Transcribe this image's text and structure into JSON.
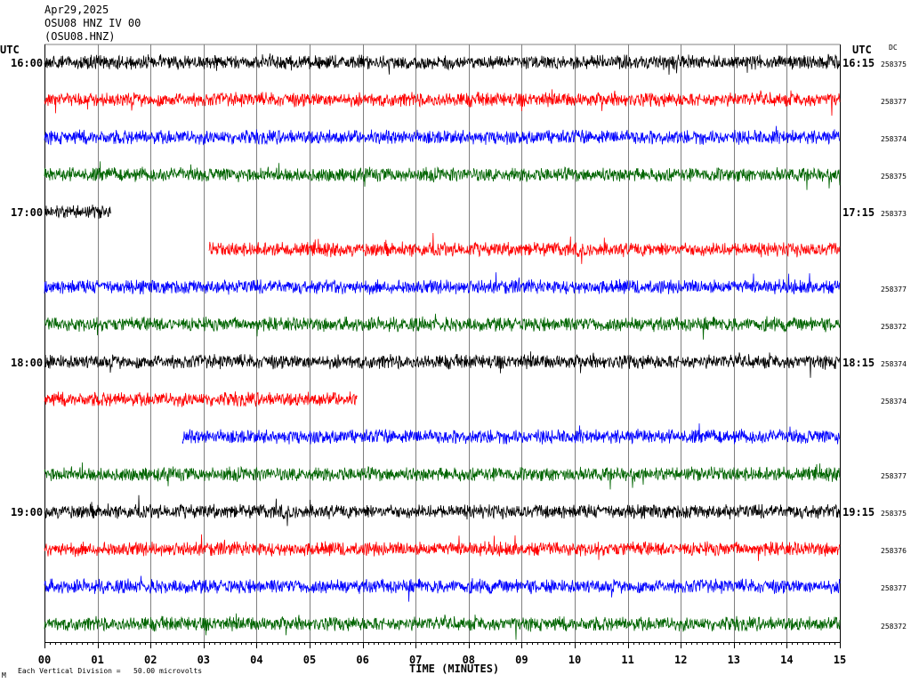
{
  "header": {
    "date": "Apr29,2025",
    "station": "OSU08 HNZ IV 00",
    "channel": "(OSU08.HNZ)"
  },
  "left_axis_label": "UTC",
  "right_axis_label": "UTC",
  "dc_label": "DC",
  "footer": {
    "scale_note": "Each Vertical Division =   50.00 microvolts",
    "mark": "M"
  },
  "colors": {
    "black": "#000000",
    "red": "#ff0000",
    "blue": "#0000ff",
    "green": "#006400",
    "grid": "#808080"
  },
  "chart_data": {
    "type": "line",
    "title": "",
    "xlabel": "TIME (MINUTES)",
    "ylabel": "",
    "xlim": [
      0,
      15
    ],
    "x_ticks": [
      "00",
      "01",
      "02",
      "03",
      "04",
      "05",
      "06",
      "07",
      "08",
      "09",
      "10",
      "11",
      "12",
      "13",
      "14",
      "15"
    ],
    "grid": true,
    "hour_labels": [
      {
        "row": 0,
        "left": "16:00",
        "right": "16:15"
      },
      {
        "row": 4,
        "left": "17:00",
        "right": "17:15"
      },
      {
        "row": 8,
        "left": "18:00",
        "right": "18:15"
      },
      {
        "row": 12,
        "left": "19:00",
        "right": "19:15"
      }
    ],
    "series": [
      {
        "row": 0,
        "color": "black",
        "start_min": 0.0,
        "end_min": 15.0,
        "dc": "258375"
      },
      {
        "row": 1,
        "color": "red",
        "start_min": 0.0,
        "end_min": 15.0,
        "dc": "258377"
      },
      {
        "row": 2,
        "color": "blue",
        "start_min": 0.0,
        "end_min": 15.0,
        "dc": "258374"
      },
      {
        "row": 3,
        "color": "green",
        "start_min": 0.0,
        "end_min": 15.0,
        "dc": "258375"
      },
      {
        "row": 4,
        "color": "black",
        "start_min": 0.0,
        "end_min": 1.25,
        "dc": "258373"
      },
      {
        "row": 5,
        "color": "red",
        "start_min": 3.1,
        "end_min": 15.0,
        "dc": ""
      },
      {
        "row": 6,
        "color": "blue",
        "start_min": 0.0,
        "end_min": 15.0,
        "dc": "258377"
      },
      {
        "row": 7,
        "color": "green",
        "start_min": 0.0,
        "end_min": 15.0,
        "dc": "258372"
      },
      {
        "row": 8,
        "color": "black",
        "start_min": 0.0,
        "end_min": 15.0,
        "dc": "258374"
      },
      {
        "row": 9,
        "color": "red",
        "start_min": 0.0,
        "end_min": 5.9,
        "dc": "258374"
      },
      {
        "row": 10,
        "color": "blue",
        "start_min": 2.6,
        "end_min": 15.0,
        "dc": ""
      },
      {
        "row": 11,
        "color": "green",
        "start_min": 0.0,
        "end_min": 15.0,
        "dc": "258377"
      },
      {
        "row": 12,
        "color": "black",
        "start_min": 0.0,
        "end_min": 15.0,
        "dc": "258375"
      },
      {
        "row": 13,
        "color": "red",
        "start_min": 0.0,
        "end_min": 15.0,
        "dc": "258376"
      },
      {
        "row": 14,
        "color": "blue",
        "start_min": 0.0,
        "end_min": 15.0,
        "dc": "258377"
      },
      {
        "row": 15,
        "color": "green",
        "start_min": 0.0,
        "end_min": 15.0,
        "dc": "258372"
      }
    ]
  }
}
